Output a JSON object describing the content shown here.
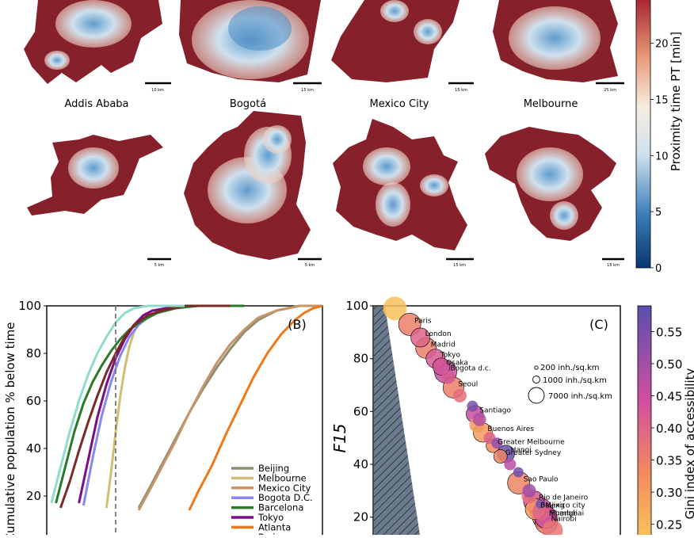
{
  "maps": {
    "top_row_scalebars": [
      "10 km",
      "15 km",
      "15 km",
      "25 km"
    ],
    "cities": [
      {
        "name": "Addis Ababa",
        "scalebar": "5 km"
      },
      {
        "name": "Bogotá",
        "scalebar": "5 km"
      },
      {
        "name": "Mexico City",
        "scalebar": "15 km"
      },
      {
        "name": "Melbourne",
        "scalebar": "15 km"
      }
    ],
    "colorbar": {
      "label": "Proximity time PT [min]",
      "ticks": [
        "0",
        "5",
        "10",
        "15",
        "20"
      ],
      "range": [
        0,
        24
      ]
    }
  },
  "chart_data": [
    {
      "type": "line",
      "panel_label": "(B)",
      "ylabel": "Cumulative population % below time",
      "ylim": [
        0,
        100
      ],
      "yticks": [
        "20",
        "40",
        "60",
        "80",
        "100"
      ],
      "reference_line_x": 15,
      "xlim": [
        0,
        60
      ],
      "series": [
        {
          "name": "Beijing",
          "color": "#8a8f6e",
          "x": [
            20,
            22,
            25,
            28,
            31,
            34,
            37,
            40,
            43,
            46,
            50,
            55,
            60
          ],
          "y": [
            15,
            22,
            33,
            44,
            55,
            65,
            74,
            82,
            89,
            94,
            98,
            100,
            100
          ]
        },
        {
          "name": "Melbourne",
          "color": "#d2bd72",
          "x": [
            13,
            14,
            15,
            16,
            17,
            18,
            19,
            20,
            22,
            25,
            28,
            32,
            36,
            40
          ],
          "y": [
            15,
            30,
            47,
            62,
            74,
            83,
            89,
            93,
            96,
            98,
            99,
            100,
            100,
            100
          ]
        },
        {
          "name": "Mexico City",
          "color": "#c8946a",
          "x": [
            20,
            22,
            25,
            28,
            31,
            34,
            37,
            40,
            43,
            46,
            50,
            55,
            60
          ],
          "y": [
            14,
            21,
            32,
            43,
            55,
            66,
            76,
            84,
            90,
            95,
            98,
            100,
            100
          ]
        },
        {
          "name": "Bogota D.C.",
          "color": "#8a86f2",
          "x": [
            8,
            10,
            12,
            14,
            16,
            18,
            20,
            22,
            24,
            27,
            30,
            35,
            40
          ],
          "y": [
            16,
            36,
            54,
            68,
            79,
            87,
            92,
            95,
            97,
            99,
            100,
            100,
            100
          ]
        },
        {
          "name": "Barcelona",
          "color": "#2b7a2b",
          "x": [
            2,
            4,
            6,
            8,
            10,
            12,
            14,
            16,
            18,
            21,
            24,
            28,
            33,
            38,
            43
          ],
          "y": [
            17,
            32,
            47,
            59,
            68,
            75,
            81,
            86,
            90,
            94,
            97,
            99,
            100,
            100,
            100
          ]
        },
        {
          "name": "Tokyo",
          "color": "#7a0e8a",
          "x": [
            7,
            9,
            11,
            13,
            15,
            17,
            19,
            21,
            23,
            26,
            30,
            35,
            40
          ],
          "y": [
            17,
            35,
            53,
            67,
            78,
            86,
            92,
            96,
            98,
            99,
            100,
            100,
            100
          ]
        },
        {
          "name": "Atlanta",
          "color": "#f07818",
          "x": [
            31,
            33,
            36,
            39,
            42,
            45,
            48,
            51,
            54,
            56,
            58,
            60
          ],
          "y": [
            14,
            22,
            33,
            46,
            58,
            70,
            80,
            88,
            94,
            97,
            99,
            100
          ]
        },
        {
          "name": "Paris",
          "color": "#7a2a26",
          "x": [
            3,
            5,
            7,
            9,
            11,
            13,
            15,
            17,
            19,
            22,
            25,
            30,
            35,
            40
          ],
          "y": [
            15,
            26,
            39,
            51,
            62,
            72,
            80,
            87,
            92,
            96,
            98,
            100,
            100,
            100
          ]
        },
        {
          "name": "",
          "color": "#8fdccb",
          "x": [
            1,
            3,
            5,
            7,
            9,
            11,
            13,
            15,
            17,
            19,
            22,
            25,
            30
          ],
          "y": [
            17,
            32,
            47,
            60,
            71,
            80,
            87,
            93,
            97,
            99,
            100,
            100,
            100
          ]
        }
      ]
    },
    {
      "type": "scatter",
      "panel_label": "(C)",
      "ylabel": "F15",
      "ylim": [
        10,
        100
      ],
      "yticks": [
        "20",
        "40",
        "60",
        "80",
        "100"
      ],
      "size_legend": [
        "200 inh./sq.km",
        "1000 inh./sq.km",
        "7000 inh./sq.km"
      ],
      "colorbar": {
        "label": "Gini index of accessibility",
        "ticks": [
          "0.25",
          "0.30",
          "0.35",
          "0.40",
          "0.45",
          "0.50",
          "0.55"
        ],
        "range": [
          0.22,
          0.59
        ]
      },
      "points": [
        {
          "label": "",
          "f15": 99,
          "gini": 0.23,
          "size": 7000
        },
        {
          "label": "Paris",
          "f15": 93,
          "gini": 0.35,
          "size": 6000
        },
        {
          "label": "London",
          "f15": 88,
          "gini": 0.4,
          "size": 4000
        },
        {
          "label": "Madrid",
          "f15": 84,
          "gini": 0.35,
          "size": 5000
        },
        {
          "label": "Tokyo",
          "f15": 80,
          "gini": 0.42,
          "size": 4000
        },
        {
          "label": "Osaka",
          "f15": 77,
          "gini": 0.43,
          "size": 3000
        },
        {
          "label": "Bogota d.c.",
          "f15": 75,
          "gini": 0.45,
          "size": 6000
        },
        {
          "label": "Seoul",
          "f15": 69,
          "gini": 0.35,
          "size": 5000
        },
        {
          "label": "Santiago",
          "f15": 59,
          "gini": 0.45,
          "size": 3000
        },
        {
          "label": "Buenos Aires",
          "f15": 52,
          "gini": 0.3,
          "size": 4000
        },
        {
          "label": "Greater Melbourne",
          "f15": 47,
          "gini": 0.33,
          "size": 1500
        },
        {
          "label": "Greater Sydney",
          "f15": 43,
          "gini": 0.34,
          "size": 1500
        },
        {
          "label": "Hanoi",
          "f15": 44,
          "gini": 0.57,
          "size": 3000
        },
        {
          "label": "Sao Paulo",
          "f15": 33,
          "gini": 0.34,
          "size": 6000
        },
        {
          "label": "Rio de Janeiro",
          "f15": 26,
          "gini": 0.42,
          "size": 5000
        },
        {
          "label": "Mexico city",
          "f15": 23,
          "gini": 0.45,
          "size": 6000
        },
        {
          "label": "Beijing",
          "f15": 23,
          "gini": 0.3,
          "size": 5000
        },
        {
          "label": "Mumbai",
          "f15": 20,
          "gini": 0.4,
          "size": 7000
        },
        {
          "label": "Nairobi",
          "f15": 18,
          "gini": 0.35,
          "size": 6000
        },
        {
          "label": "Shanghai",
          "f15": 20,
          "gini": 0.45,
          "size": 6000
        },
        {
          "label": "",
          "f15": 73,
          "gini": 0.42,
          "size": 1500
        },
        {
          "label": "",
          "f15": 66,
          "gini": 0.38,
          "size": 1500
        },
        {
          "label": "",
          "f15": 62,
          "gini": 0.55,
          "size": 800
        },
        {
          "label": "",
          "f15": 57,
          "gini": 0.48,
          "size": 1500
        },
        {
          "label": "",
          "f15": 55,
          "gini": 0.3,
          "size": 2500
        },
        {
          "label": "",
          "f15": 50,
          "gini": 0.4,
          "size": 1000
        },
        {
          "label": "",
          "f15": 48,
          "gini": 0.52,
          "size": 800
        },
        {
          "label": "",
          "f15": 40,
          "gini": 0.47,
          "size": 1000
        },
        {
          "label": "",
          "f15": 37,
          "gini": 0.56,
          "size": 600
        },
        {
          "label": "",
          "f15": 30,
          "gini": 0.5,
          "size": 1500
        },
        {
          "label": "",
          "f15": 28,
          "gini": 0.38,
          "size": 2000
        },
        {
          "label": "",
          "f15": 25,
          "gini": 0.56,
          "size": 400
        },
        {
          "label": "",
          "f15": 22,
          "gini": 0.4,
          "size": 3000
        },
        {
          "label": "",
          "f15": 15,
          "gini": 0.37,
          "size": 5000
        }
      ]
    }
  ]
}
